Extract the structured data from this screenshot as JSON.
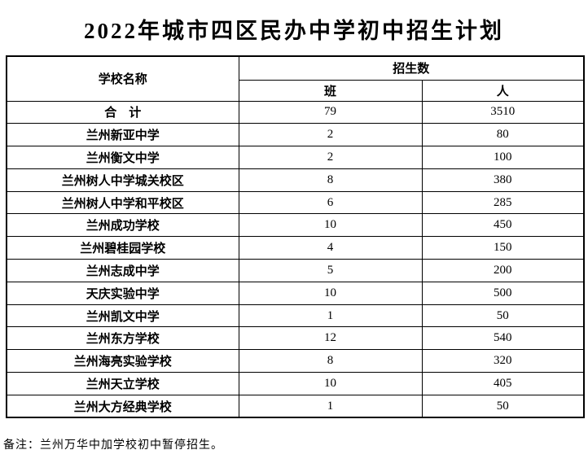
{
  "page": {
    "title": "2022年城市四区民办中学初中招生计划",
    "note": "备注：兰州万华中加学校初中暂停招生。"
  },
  "table": {
    "headers": {
      "school": "学校名称",
      "enrollment_group": "招生数",
      "classes": "班",
      "people": "人"
    },
    "rows": [
      {
        "school": "合　计",
        "classes": "79",
        "people": "3510"
      },
      {
        "school": "兰州新亚中学",
        "classes": "2",
        "people": "80"
      },
      {
        "school": "兰州衡文中学",
        "classes": "2",
        "people": "100"
      },
      {
        "school": "兰州树人中学城关校区",
        "classes": "8",
        "people": "380"
      },
      {
        "school": "兰州树人中学和平校区",
        "classes": "6",
        "people": "285"
      },
      {
        "school": "兰州成功学校",
        "classes": "10",
        "people": "450"
      },
      {
        "school": "兰州碧桂园学校",
        "classes": "4",
        "people": "150"
      },
      {
        "school": "兰州志成中学",
        "classes": "5",
        "people": "200"
      },
      {
        "school": "天庆实验中学",
        "classes": "10",
        "people": "500"
      },
      {
        "school": "兰州凯文中学",
        "classes": "1",
        "people": "50"
      },
      {
        "school": "兰州东方学校",
        "classes": "12",
        "people": "540"
      },
      {
        "school": "兰州海亮实验学校",
        "classes": "8",
        "people": "320"
      },
      {
        "school": "兰州天立学校",
        "classes": "10",
        "people": "405"
      },
      {
        "school": "兰州大方经典学校",
        "classes": "1",
        "people": "50"
      }
    ]
  },
  "colors": {
    "text": "#000000",
    "border": "#000000",
    "background": "#ffffff"
  },
  "chart_data": {
    "type": "table",
    "title": "2022年城市四区民办中学初中招生计划",
    "columns": [
      "学校名称",
      "招生数-班",
      "招生数-人"
    ],
    "categories": [
      "合计",
      "兰州新亚中学",
      "兰州衡文中学",
      "兰州树人中学城关校区",
      "兰州树人中学和平校区",
      "兰州成功学校",
      "兰州碧桂园学校",
      "兰州志成中学",
      "天庆实验中学",
      "兰州凯文中学",
      "兰州东方学校",
      "兰州海亮实验学校",
      "兰州天立学校",
      "兰州大方经典学校"
    ],
    "series": [
      {
        "name": "班",
        "values": [
          79,
          2,
          2,
          8,
          6,
          10,
          4,
          5,
          10,
          1,
          12,
          8,
          10,
          1
        ]
      },
      {
        "name": "人",
        "values": [
          3510,
          80,
          100,
          380,
          285,
          450,
          150,
          200,
          500,
          50,
          540,
          320,
          405,
          50
        ]
      }
    ],
    "annotations": [
      "备注：兰州万华中加学校初中暂停招生。"
    ]
  }
}
